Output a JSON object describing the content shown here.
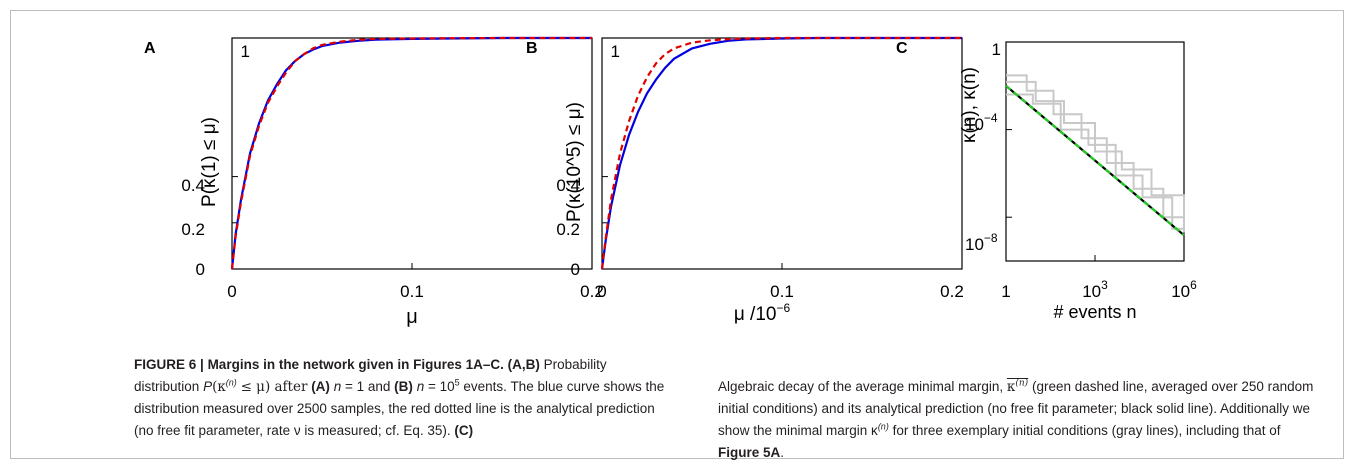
{
  "charts": {
    "A": {
      "panel_label": "A",
      "xlabel": "μ",
      "ylabel": "P(κ(1) ≤ μ)",
      "xticks": [
        "0",
        "0.1",
        "0.2"
      ],
      "yticks": [
        "0",
        "0.2",
        "0.4",
        "1"
      ]
    },
    "B": {
      "panel_label": "B",
      "xlabel": "μ /10",
      "xlabel_exp": "−6",
      "ylabel": "P(κ(10^5) ≤ μ)",
      "xticks": [
        "0",
        "0.1",
        "0.2"
      ],
      "yticks": [
        "0",
        "0.2",
        "0.4",
        "1"
      ]
    },
    "C": {
      "panel_label": "C",
      "xlabel": "# events n",
      "ylabel": "κ(n), κ(n)",
      "xticks": [
        "1",
        "10",
        "10"
      ],
      "xtick_exps": [
        "",
        "3",
        "6"
      ],
      "yticks": [
        "10",
        "10",
        "1"
      ],
      "ytick_exps": [
        "−4",
        "−8",
        ""
      ]
    }
  },
  "chart_data": [
    {
      "type": "line",
      "title": "",
      "xlabel": "μ",
      "ylabel": "P(κ(1) ≤ μ)",
      "xlim": [
        0,
        0.2
      ],
      "ylim": [
        0,
        1
      ],
      "series": [
        {
          "color": "#0000e0",
          "style": "solid",
          "x": [
            0,
            0.002,
            0.005,
            0.01,
            0.015,
            0.02,
            0.025,
            0.03,
            0.035,
            0.04,
            0.045,
            0.05,
            0.06,
            0.07,
            0.08,
            0.1,
            0.12,
            0.15,
            0.2
          ],
          "y": [
            0,
            0.15,
            0.3,
            0.5,
            0.63,
            0.73,
            0.8,
            0.86,
            0.9,
            0.93,
            0.95,
            0.965,
            0.98,
            0.988,
            0.993,
            0.996,
            0.998,
            1.0,
            1.0
          ]
        },
        {
          "color": "#e00000",
          "style": "dashed",
          "x": [
            0,
            0.002,
            0.005,
            0.01,
            0.015,
            0.02,
            0.025,
            0.03,
            0.035,
            0.04,
            0.045,
            0.05,
            0.06,
            0.07,
            0.08,
            0.1,
            0.12,
            0.15,
            0.2
          ],
          "y": [
            0,
            0.14,
            0.29,
            0.49,
            0.62,
            0.72,
            0.79,
            0.85,
            0.9,
            0.93,
            0.955,
            0.97,
            0.984,
            0.992,
            0.996,
            0.998,
            0.999,
            1.0,
            1.0
          ]
        }
      ]
    },
    {
      "type": "line",
      "title": "",
      "xlabel": "μ /10^-6",
      "ylabel": "P(κ(10^5) ≤ μ)",
      "xlim": [
        0,
        0.2
      ],
      "ylim": [
        0,
        1
      ],
      "series": [
        {
          "color": "#0000e0",
          "style": "solid",
          "x": [
            0,
            0.002,
            0.005,
            0.01,
            0.015,
            0.02,
            0.025,
            0.03,
            0.035,
            0.04,
            0.05,
            0.06,
            0.07,
            0.08,
            0.1,
            0.12,
            0.15,
            0.2
          ],
          "y": [
            0,
            0.12,
            0.27,
            0.45,
            0.58,
            0.68,
            0.76,
            0.82,
            0.87,
            0.91,
            0.955,
            0.975,
            0.988,
            0.994,
            0.998,
            1.0,
            1.0,
            1.0
          ]
        },
        {
          "color": "#e00000",
          "style": "dashed",
          "x": [
            0,
            0.002,
            0.005,
            0.01,
            0.015,
            0.02,
            0.025,
            0.03,
            0.035,
            0.04,
            0.05,
            0.06,
            0.07,
            0.08,
            0.1,
            0.12,
            0.15,
            0.2
          ],
          "y": [
            0,
            0.13,
            0.3,
            0.5,
            0.64,
            0.75,
            0.83,
            0.89,
            0.93,
            0.955,
            0.98,
            0.99,
            0.995,
            0.998,
            1.0,
            1.0,
            1.0,
            1.0
          ]
        }
      ]
    },
    {
      "type": "line",
      "title": "",
      "xlabel": "# events n",
      "ylabel": "κ(n), κ(n)",
      "xscale": "log",
      "yscale": "log",
      "xlim": [
        1,
        1000000
      ],
      "ylim": [
        1e-10,
        1
      ],
      "series": [
        {
          "color": "#000000",
          "style": "solid",
          "x": [
            1,
            1000000
          ],
          "y": [
            0.01,
            1.5e-09
          ]
        },
        {
          "color": "#22cc22",
          "style": "dashed",
          "x": [
            1,
            1000000
          ],
          "y": [
            0.01,
            1.5e-09
          ]
        },
        {
          "color": "#c8c8c8",
          "style": "step",
          "x": [
            1,
            3,
            5,
            15,
            40,
            120,
            350,
            900,
            2500,
            7000,
            20000,
            60000,
            200000,
            1000000
          ],
          "y": [
            0.03,
            0.03,
            0.006,
            0.006,
            0.0005,
            0.0005,
            4e-05,
            4e-05,
            3e-06,
            3e-06,
            2e-07,
            2e-07,
            1e-08,
            1e-08
          ]
        },
        {
          "color": "#c8c8c8",
          "style": "step",
          "x": [
            1,
            2,
            8,
            20,
            70,
            200,
            600,
            1500,
            5000,
            12000,
            40000,
            100000,
            400000,
            1000000
          ],
          "y": [
            0.004,
            0.004,
            0.0015,
            0.0015,
            0.0001,
            0.0001,
            2e-05,
            2e-05,
            8e-07,
            8e-07,
            8e-08,
            8e-08,
            3e-09,
            3e-09
          ]
        },
        {
          "color": "#c8c8c8",
          "style": "step",
          "x": [
            1,
            4,
            10,
            30,
            90,
            300,
            1000,
            3000,
            8000,
            30000,
            80000,
            300000,
            1000000
          ],
          "y": [
            0.015,
            0.015,
            0.002,
            0.002,
            0.0002,
            0.0002,
            1e-05,
            1e-05,
            1.5e-06,
            1.5e-06,
            1e-07,
            1e-07,
            2e-09
          ]
        }
      ]
    }
  ],
  "caption": {
    "figure_label": "FIGURE 6 |",
    "title": "Margins in the network given in Figures 1A–C.",
    "ab_ref": "(A,B)",
    "t1": "Probability distribution",
    "p": "P",
    "t2": "(κ",
    "sup_n": "(n)",
    "t3": "≤ μ) after",
    "a_ref": "(A)",
    "n_var": "n",
    "t4": "= 1 and",
    "b_ref": "(B)",
    "n_var2": "n",
    "t5": "= 10",
    "sup_5": "5",
    "t6": "events. The blue curve shows the distribution measured over 2500 samples, the red dotted line is the analytical prediction (no free fit parameter, rate ν is measured; cf. Eq. 35).",
    "c_ref": "(C)",
    "r1": "Algebraic decay of the average minimal margin,",
    "r_kappa": "κ",
    "r_sup": "(n)",
    "r2": "(green dashed line, averaged over 250 random initial conditions) and its analytical prediction (no free fit parameter; black solid line). Additionally we show the minimal margin κ",
    "r_sup2": "(n)",
    "r3": "for three exemplary initial conditions (gray lines), including that of",
    "fig_ref": "Figure 5A",
    "r4": "."
  }
}
